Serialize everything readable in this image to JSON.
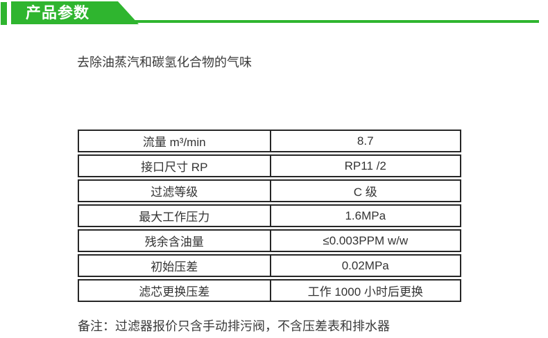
{
  "colors": {
    "accent_green": "#2fb52f",
    "table_border": "#262626",
    "text": "#333333"
  },
  "header": {
    "title": "产品参数"
  },
  "description": "去除油蒸汽和碳氢化合物的气味",
  "table": {
    "rows": [
      {
        "label": "流量 m³/min",
        "value": "8.7"
      },
      {
        "label": "接口尺寸 RP",
        "value": "RP11 /2"
      },
      {
        "label": "过滤等级",
        "value": "C 级"
      },
      {
        "label": "最大工作压力",
        "value": "1.6MPa"
      },
      {
        "label": "残余含油量",
        "value": "≤0.003PPM w/w"
      },
      {
        "label": "初始压差",
        "value": "0.02MPa"
      },
      {
        "label": "滤芯更换压差",
        "value": "工作 1000 小时后更换"
      }
    ]
  },
  "note": "备注：过滤器报价只含手动排污阀，不含压差表和排水器"
}
